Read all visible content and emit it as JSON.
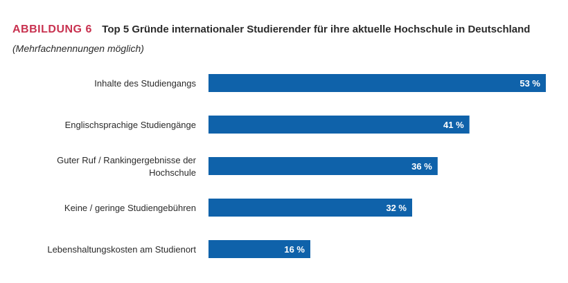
{
  "figure": {
    "label": "ABBILDUNG 6",
    "title": "Top 5 Gründe internationaler Studierender für ihre aktuelle Hochschule in Deutschland",
    "subtitle": "(Mehrfachnennungen möglich)"
  },
  "colors": {
    "accent": "#c8314f",
    "bar": "#0f62aa",
    "value_text": "#ffffff"
  },
  "chart_data": {
    "type": "bar",
    "orientation": "horizontal",
    "title": "Top 5 Gründe internationaler Studierender für ihre aktuelle Hochschule in Deutschland",
    "subtitle": "(Mehrfachnennungen möglich)",
    "categories": [
      [
        "Inhalte des Studiengangs"
      ],
      [
        "Englischsprachige Studiengänge"
      ],
      [
        "Guter Ruf / Rankingergebnisse der",
        "Hochschule"
      ],
      [
        "Keine / geringe Studiengebühren"
      ],
      [
        "Lebenshaltungskosten am Studienort"
      ]
    ],
    "values": [
      53,
      41,
      36,
      32,
      16
    ],
    "value_labels": [
      "53 %",
      "41 %",
      "36 %",
      "32 %",
      "16 %"
    ],
    "unit": "%",
    "xlim": [
      0,
      53
    ],
    "xlabel": "",
    "ylabel": "",
    "grid": false,
    "legend": "none"
  }
}
